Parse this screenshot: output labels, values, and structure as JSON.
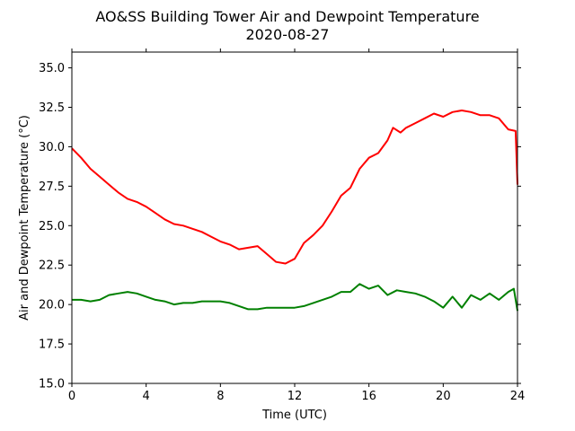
{
  "chart_data": {
    "type": "line",
    "title": "AO&SS Building Tower Air and Dewpoint Temperature",
    "subtitle": "2020-08-27",
    "xlabel": "Time (UTC)",
    "ylabel": "Air and Dewpoint Temperature (°C)",
    "xlim": [
      0,
      24
    ],
    "ylim": [
      15.0,
      36.0
    ],
    "x_ticks": [
      0,
      4,
      8,
      12,
      16,
      20,
      24
    ],
    "y_ticks": [
      15.0,
      17.5,
      20.0,
      22.5,
      25.0,
      27.5,
      30.0,
      32.5,
      35.0
    ],
    "x_tick_labels": [
      "0",
      "4",
      "8",
      "12",
      "16",
      "20",
      "24"
    ],
    "y_tick_labels": [
      "15.0",
      "17.5",
      "20.0",
      "22.5",
      "25.0",
      "27.5",
      "30.0",
      "32.5",
      "35.0"
    ],
    "grid": false,
    "legend": false,
    "series": [
      {
        "color": "#ff0000",
        "points": [
          [
            0.0,
            29.9
          ],
          [
            0.5,
            29.3
          ],
          [
            1.0,
            28.6
          ],
          [
            1.5,
            28.1
          ],
          [
            2.0,
            27.6
          ],
          [
            2.5,
            27.1
          ],
          [
            3.0,
            26.7
          ],
          [
            3.5,
            26.5
          ],
          [
            4.0,
            26.2
          ],
          [
            4.5,
            25.8
          ],
          [
            5.0,
            25.4
          ],
          [
            5.5,
            25.1
          ],
          [
            6.0,
            25.0
          ],
          [
            6.5,
            24.8
          ],
          [
            7.0,
            24.6
          ],
          [
            7.5,
            24.3
          ],
          [
            8.0,
            24.0
          ],
          [
            8.5,
            23.8
          ],
          [
            9.0,
            23.5
          ],
          [
            9.5,
            23.6
          ],
          [
            10.0,
            23.7
          ],
          [
            10.5,
            23.2
          ],
          [
            11.0,
            22.7
          ],
          [
            11.5,
            22.6
          ],
          [
            12.0,
            22.9
          ],
          [
            12.5,
            23.9
          ],
          [
            13.0,
            24.4
          ],
          [
            13.5,
            25.0
          ],
          [
            14.0,
            25.9
          ],
          [
            14.5,
            26.9
          ],
          [
            15.0,
            27.4
          ],
          [
            15.5,
            28.6
          ],
          [
            16.0,
            29.3
          ],
          [
            16.5,
            29.6
          ],
          [
            17.0,
            30.4
          ],
          [
            17.3,
            31.2
          ],
          [
            17.7,
            30.9
          ],
          [
            18.0,
            31.2
          ],
          [
            18.5,
            31.5
          ],
          [
            19.0,
            31.8
          ],
          [
            19.5,
            32.1
          ],
          [
            20.0,
            31.9
          ],
          [
            20.5,
            32.2
          ],
          [
            21.0,
            32.3
          ],
          [
            21.5,
            32.2
          ],
          [
            22.0,
            32.0
          ],
          [
            22.5,
            32.0
          ],
          [
            23.0,
            31.8
          ],
          [
            23.5,
            31.1
          ],
          [
            23.9,
            31.0
          ],
          [
            24.0,
            27.6
          ]
        ]
      },
      {
        "color": "#008000",
        "points": [
          [
            0.0,
            20.3
          ],
          [
            0.5,
            20.3
          ],
          [
            1.0,
            20.2
          ],
          [
            1.5,
            20.3
          ],
          [
            2.0,
            20.6
          ],
          [
            2.5,
            20.7
          ],
          [
            3.0,
            20.8
          ],
          [
            3.5,
            20.7
          ],
          [
            4.0,
            20.5
          ],
          [
            4.5,
            20.3
          ],
          [
            5.0,
            20.2
          ],
          [
            5.5,
            20.0
          ],
          [
            6.0,
            20.1
          ],
          [
            6.5,
            20.1
          ],
          [
            7.0,
            20.2
          ],
          [
            7.5,
            20.2
          ],
          [
            8.0,
            20.2
          ],
          [
            8.5,
            20.1
          ],
          [
            9.0,
            19.9
          ],
          [
            9.5,
            19.7
          ],
          [
            10.0,
            19.7
          ],
          [
            10.5,
            19.8
          ],
          [
            11.0,
            19.8
          ],
          [
            11.5,
            19.8
          ],
          [
            12.0,
            19.8
          ],
          [
            12.5,
            19.9
          ],
          [
            13.0,
            20.1
          ],
          [
            13.5,
            20.3
          ],
          [
            14.0,
            20.5
          ],
          [
            14.5,
            20.8
          ],
          [
            15.0,
            20.8
          ],
          [
            15.5,
            21.3
          ],
          [
            16.0,
            21.0
          ],
          [
            16.5,
            21.2
          ],
          [
            17.0,
            20.6
          ],
          [
            17.5,
            20.9
          ],
          [
            18.0,
            20.8
          ],
          [
            18.5,
            20.7
          ],
          [
            19.0,
            20.5
          ],
          [
            19.5,
            20.2
          ],
          [
            20.0,
            19.8
          ],
          [
            20.5,
            20.5
          ],
          [
            21.0,
            19.8
          ],
          [
            21.5,
            20.6
          ],
          [
            22.0,
            20.3
          ],
          [
            22.5,
            20.7
          ],
          [
            23.0,
            20.3
          ],
          [
            23.5,
            20.8
          ],
          [
            23.8,
            21.0
          ],
          [
            24.0,
            19.6
          ]
        ]
      }
    ]
  }
}
